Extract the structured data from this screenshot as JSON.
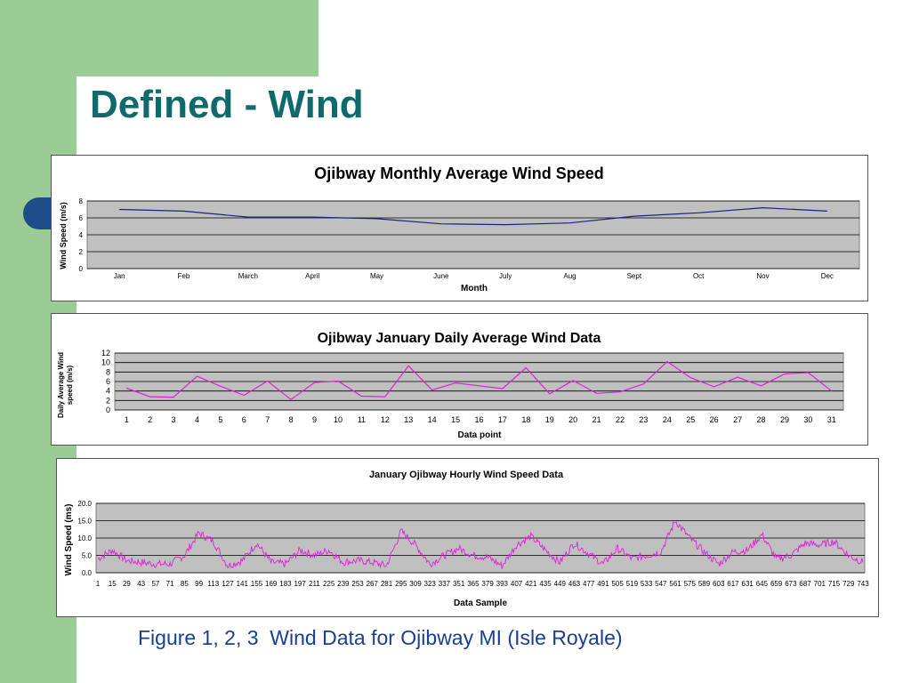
{
  "slide": {
    "title": "Defined - Wind",
    "caption": "Figure 1, 2, 3  Wind Data for Ojibway MI (Isle Royale)",
    "colors": {
      "background": "#ffffff",
      "green_accent": "#9ccc95",
      "title_teal": "#0f6b6b",
      "caption_blue": "#1b3f8e",
      "plot_area": "#c0c0c0",
      "gridline": "#000000"
    }
  },
  "chart_data": [
    {
      "type": "line",
      "title": "Ojibway Monthly Average Wind Speed",
      "xlabel": "Month",
      "ylabel": "Wind Speed (m/s)",
      "categories": [
        "Jan",
        "Feb",
        "March",
        "April",
        "May",
        "June",
        "July",
        "Aug",
        "Sept",
        "Oct",
        "Nov",
        "Dec"
      ],
      "values": [
        7.0,
        6.8,
        6.1,
        6.1,
        5.9,
        5.3,
        5.2,
        5.4,
        6.2,
        6.6,
        7.2,
        6.8
      ],
      "ylim": [
        0,
        8
      ],
      "yticks": [
        0,
        2,
        4,
        6,
        8
      ],
      "grid": true,
      "line_color": "#1a237e"
    },
    {
      "type": "line",
      "title": "Ojibway January Daily Average Wind Data",
      "xlabel": "Data point",
      "ylabel": "Daily Average Wind speed (m/s)",
      "categories": [
        "1",
        "2",
        "3",
        "4",
        "5",
        "6",
        "7",
        "8",
        "9",
        "10",
        "11",
        "12",
        "13",
        "14",
        "15",
        "16",
        "17",
        "18",
        "19",
        "20",
        "21",
        "22",
        "23",
        "24",
        "25",
        "26",
        "27",
        "28",
        "29",
        "30",
        "31"
      ],
      "values": [
        4.6,
        2.8,
        2.7,
        7.1,
        5.0,
        3.1,
        6.1,
        2.2,
        5.8,
        6.1,
        2.9,
        2.8,
        9.3,
        4.2,
        5.7,
        5.1,
        4.5,
        8.9,
        3.4,
        6.2,
        3.5,
        3.8,
        5.5,
        10.2,
        6.8,
        4.9,
        6.9,
        5.1,
        7.6,
        7.9,
        4.0
      ],
      "ylim": [
        0,
        12
      ],
      "yticks": [
        0,
        2,
        4,
        6,
        8,
        10,
        12
      ],
      "grid": true,
      "line_color": "#e01fd8"
    },
    {
      "type": "line",
      "title": "January Ojibway Hourly Wind Speed Data",
      "xlabel": "Data Sample",
      "ylabel": "Wind Speed (ms)",
      "categories": [
        "1",
        "15",
        "29",
        "43",
        "57",
        "71",
        "85",
        "99",
        "113",
        "127",
        "141",
        "155",
        "169",
        "183",
        "197",
        "211",
        "225",
        "239",
        "253",
        "267",
        "281",
        "295",
        "309",
        "323",
        "337",
        "351",
        "365",
        "379",
        "393",
        "407",
        "421",
        "435",
        "449",
        "463",
        "477",
        "491",
        "505",
        "519",
        "533",
        "547",
        "561",
        "575",
        "589",
        "603",
        "617",
        "631",
        "645",
        "659",
        "673",
        "687",
        "701",
        "715",
        "729",
        "743"
      ],
      "x": [
        1,
        15,
        29,
        43,
        57,
        71,
        85,
        99,
        113,
        127,
        141,
        155,
        169,
        183,
        197,
        211,
        225,
        239,
        253,
        267,
        281,
        295,
        309,
        323,
        337,
        351,
        365,
        379,
        393,
        407,
        421,
        435,
        449,
        463,
        477,
        491,
        505,
        519,
        533,
        547,
        561,
        575,
        589,
        603,
        617,
        631,
        645,
        659,
        673,
        687,
        701,
        715,
        729,
        743
      ],
      "values": [
        4.0,
        6.5,
        3.5,
        3.0,
        2.5,
        2.5,
        5.0,
        11.5,
        9.0,
        2.0,
        3.5,
        8.5,
        3.0,
        2.5,
        6.5,
        5.0,
        6.5,
        3.0,
        3.5,
        3.0,
        2.0,
        12.0,
        8.0,
        2.5,
        5.0,
        7.0,
        5.0,
        4.5,
        2.0,
        8.0,
        10.5,
        6.5,
        3.0,
        8.5,
        5.5,
        2.5,
        7.0,
        4.0,
        5.0,
        6.0,
        15.0,
        10.0,
        6.0,
        2.5,
        6.0,
        6.5,
        11.0,
        4.0,
        5.0,
        8.5,
        8.0,
        9.0,
        5.0,
        3.0
      ],
      "ylim": [
        0,
        20
      ],
      "yticks": [
        "0.0",
        "5.0",
        "10.0",
        "15.0",
        "20.0"
      ],
      "ytick_values": [
        0,
        5,
        10,
        15,
        20
      ],
      "grid": true,
      "line_color": "#e01fd8"
    }
  ]
}
